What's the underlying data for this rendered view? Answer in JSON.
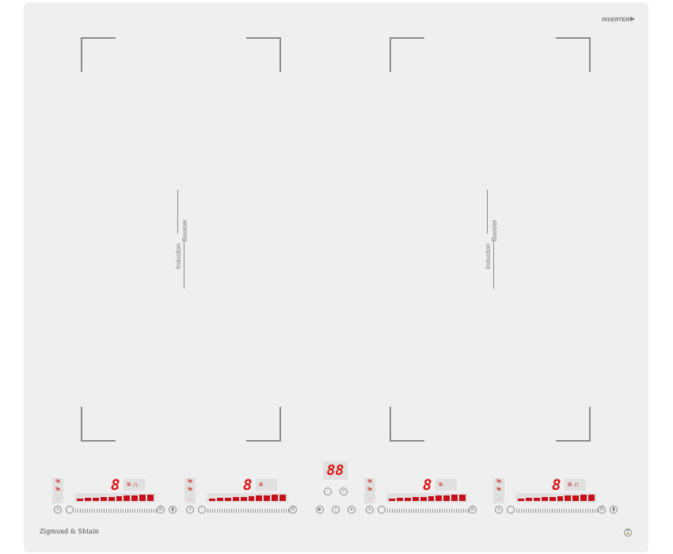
{
  "brand": {
    "logo": "Zigmund & Shtain",
    "badge": "INVERTER"
  },
  "zones": [
    {
      "label_a": "Induction",
      "label_b": "Booster"
    },
    {
      "label_a": "Induction",
      "label_b": "Booster"
    }
  ],
  "controls": [
    {
      "levels": [
        "%",
        "%",
        "_"
      ],
      "digit": "8",
      "extra": "≡ ∩",
      "booster": "B",
      "bridge": true
    },
    {
      "levels": [
        "%",
        "%",
        "_"
      ],
      "digit": "8",
      "extra": "≡",
      "booster": "B",
      "bridge": false
    },
    {
      "levels": [
        "%",
        "%",
        "_"
      ],
      "digit": "8",
      "extra": "≡",
      "booster": "B",
      "bridge": false
    },
    {
      "levels": [
        "%",
        "%",
        "_"
      ],
      "digit": "8",
      "extra": "≡ ∩",
      "booster": "B",
      "bridge": true
    }
  ],
  "center": {
    "timer_display": "88",
    "timer_minus": "-",
    "timer_plus": "+",
    "play_icon": "play-pause-icon",
    "power_icon": "power-icon",
    "lock_icon": "lock-icon"
  },
  "colors": {
    "display": "#d11111",
    "panel": "#efefef",
    "frame": "#8a8a8a"
  }
}
